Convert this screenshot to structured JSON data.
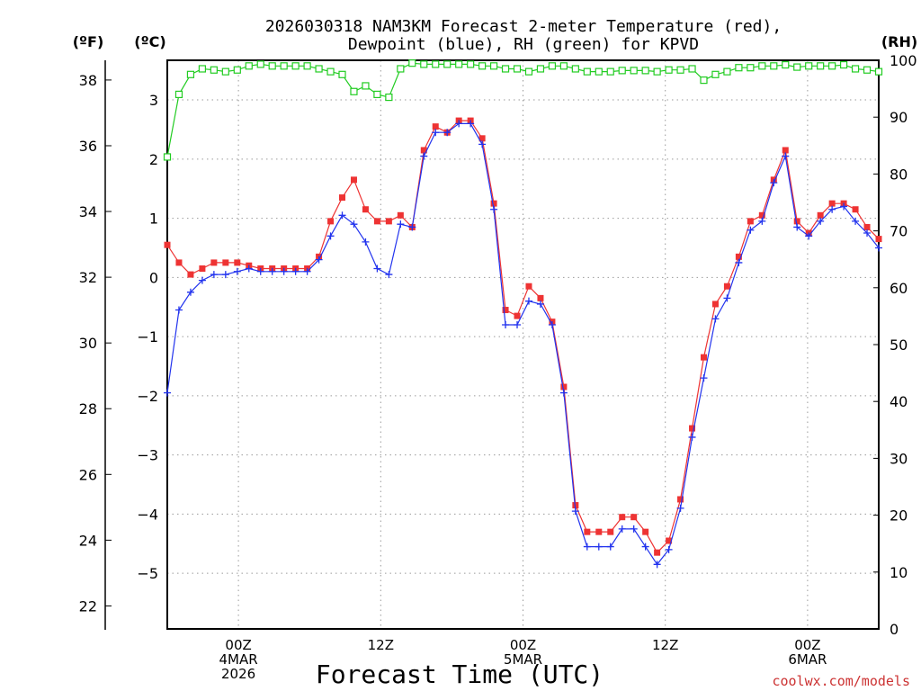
{
  "chart_data": {
    "type": "line",
    "title_line1": "2026030318 NAM3KM Forecast 2-meter Temperature (red),",
    "title_line2": "Dewpoint (blue), RH (green) for KPVD",
    "xlabel": "Forecast Time (UTC)",
    "credit": "coolwx.com/models",
    "left_unit_f": "(ºF)",
    "left_unit_c": "(ºC)",
    "right_unit": "(RH)",
    "fahrenheit_axis": {
      "ylim": [
        21.3,
        38.6
      ],
      "ticks": [
        "22",
        "24",
        "26",
        "28",
        "30",
        "32",
        "34",
        "36",
        "38"
      ]
    },
    "celsius_axis": {
      "ylim": [
        -5.94,
        3.67
      ],
      "ticks": [
        "−5",
        "−4",
        "−3",
        "−2",
        "−1",
        "0",
        "1",
        "2",
        "3"
      ]
    },
    "rh_axis": {
      "ylim": [
        0,
        100
      ],
      "ticks": [
        "0",
        "10",
        "20",
        "30",
        "40",
        "50",
        "60",
        "70",
        "80",
        "90",
        "100"
      ]
    },
    "x_axis": {
      "range_hours": [
        0,
        60
      ],
      "ticks": [
        {
          "hour": 6,
          "lines": [
            "00Z",
            "4MAR",
            "2026"
          ]
        },
        {
          "hour": 18,
          "lines": [
            "12Z"
          ]
        },
        {
          "hour": 30,
          "lines": [
            "00Z",
            "5MAR"
          ]
        },
        {
          "hour": 42,
          "lines": [
            "12Z"
          ]
        },
        {
          "hour": 54,
          "lines": [
            "00Z",
            "6MAR"
          ]
        }
      ]
    },
    "series": [
      {
        "name": "Temperature",
        "unit": "°C",
        "color": "#ee3333",
        "marker": "filled-square",
        "values": [
          0.55,
          0.25,
          0.05,
          0.15,
          0.25,
          0.25,
          0.25,
          0.2,
          0.15,
          0.15,
          0.15,
          0.15,
          0.15,
          0.35,
          0.95,
          1.35,
          1.65,
          1.15,
          0.95,
          0.95,
          1.05,
          0.85,
          2.15,
          2.55,
          2.45,
          2.65,
          2.65,
          2.35,
          1.25,
          -0.55,
          -0.65,
          -0.15,
          -0.35,
          -0.75,
          -1.85,
          -3.85,
          -4.3,
          -4.3,
          -4.3,
          -4.05,
          -4.05,
          -4.3,
          -4.65,
          -4.45,
          -3.75,
          -2.55,
          -1.35,
          -0.45,
          -0.15,
          0.35,
          0.95,
          1.05,
          1.65,
          2.15,
          0.95,
          0.75,
          1.05,
          1.25,
          1.25,
          1.15,
          0.85,
          0.65
        ]
      },
      {
        "name": "Dewpoint",
        "unit": "°C",
        "color": "#2233ee",
        "marker": "plus",
        "values": [
          -1.95,
          -0.55,
          -0.25,
          -0.05,
          0.05,
          0.05,
          0.1,
          0.15,
          0.1,
          0.1,
          0.1,
          0.1,
          0.1,
          0.3,
          0.7,
          1.05,
          0.9,
          0.6,
          0.15,
          0.05,
          0.9,
          0.85,
          2.05,
          2.45,
          2.45,
          2.6,
          2.6,
          2.25,
          1.15,
          -0.8,
          -0.8,
          -0.4,
          -0.45,
          -0.8,
          -1.95,
          -3.95,
          -4.55,
          -4.55,
          -4.55,
          -4.25,
          -4.25,
          -4.55,
          -4.85,
          -4.6,
          -3.9,
          -2.7,
          -1.7,
          -0.7,
          -0.35,
          0.25,
          0.8,
          0.95,
          1.6,
          2.05,
          0.85,
          0.7,
          0.95,
          1.15,
          1.2,
          0.95,
          0.75,
          0.5
        ]
      },
      {
        "name": "RH",
        "unit": "%",
        "color": "#22cc22",
        "marker": "open-square",
        "values": [
          83,
          94,
          97.5,
          98.5,
          98.3,
          98,
          98.3,
          99,
          99.3,
          99,
          99,
          99,
          99,
          98.5,
          98,
          97.5,
          94.5,
          95.5,
          94,
          93.5,
          98.5,
          99.5,
          99.3,
          99.3,
          99.3,
          99.3,
          99.3,
          99,
          99,
          98.5,
          98.5,
          98,
          98.5,
          99,
          99,
          98.5,
          98,
          98,
          98,
          98.2,
          98.2,
          98.2,
          98,
          98.3,
          98.3,
          98.5,
          96.5,
          97.5,
          98,
          98.7,
          98.7,
          99,
          99,
          99.2,
          98.8,
          99,
          99,
          99,
          99.2,
          98.5,
          98.3,
          98
        ]
      }
    ]
  }
}
